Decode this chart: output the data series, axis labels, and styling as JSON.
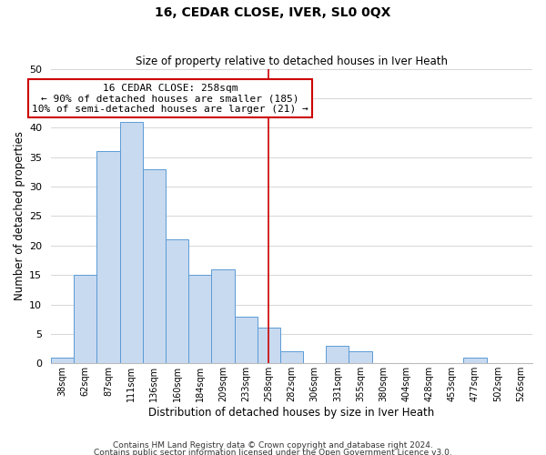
{
  "title": "16, CEDAR CLOSE, IVER, SL0 0QX",
  "subtitle": "Size of property relative to detached houses in Iver Heath",
  "xlabel": "Distribution of detached houses by size in Iver Heath",
  "ylabel": "Number of detached properties",
  "bar_labels": [
    "38sqm",
    "62sqm",
    "87sqm",
    "111sqm",
    "136sqm",
    "160sqm",
    "184sqm",
    "209sqm",
    "233sqm",
    "258sqm",
    "282sqm",
    "306sqm",
    "331sqm",
    "355sqm",
    "380sqm",
    "404sqm",
    "428sqm",
    "453sqm",
    "477sqm",
    "502sqm",
    "526sqm"
  ],
  "bar_heights": [
    1,
    15,
    36,
    41,
    33,
    21,
    15,
    16,
    8,
    6,
    2,
    0,
    3,
    2,
    0,
    0,
    0,
    0,
    1,
    0,
    0
  ],
  "bar_color": "#c8daf0",
  "bar_edge_color": "#5b9bd5",
  "grid_color": "#d0d0d0",
  "vline_x_index": 9,
  "vline_color": "#cc0000",
  "ylim": [
    0,
    50
  ],
  "yticks": [
    0,
    5,
    10,
    15,
    20,
    25,
    30,
    35,
    40,
    45,
    50
  ],
  "annotation_line1": "16 CEDAR CLOSE: 258sqm",
  "annotation_line2": "← 90% of detached houses are smaller (185)",
  "annotation_line3": "10% of semi-detached houses are larger (21) →",
  "annotation_box_color": "#ffffff",
  "annotation_box_edge": "#cc0000",
  "footer1": "Contains HM Land Registry data © Crown copyright and database right 2024.",
  "footer2": "Contains public sector information licensed under the Open Government Licence v3.0.",
  "title_fontsize": 10,
  "subtitle_fontsize": 8.5,
  "xlabel_fontsize": 8.5,
  "ylabel_fontsize": 8.5,
  "xtick_fontsize": 7,
  "ytick_fontsize": 8,
  "annot_fontsize": 8,
  "footer_fontsize": 6.5
}
